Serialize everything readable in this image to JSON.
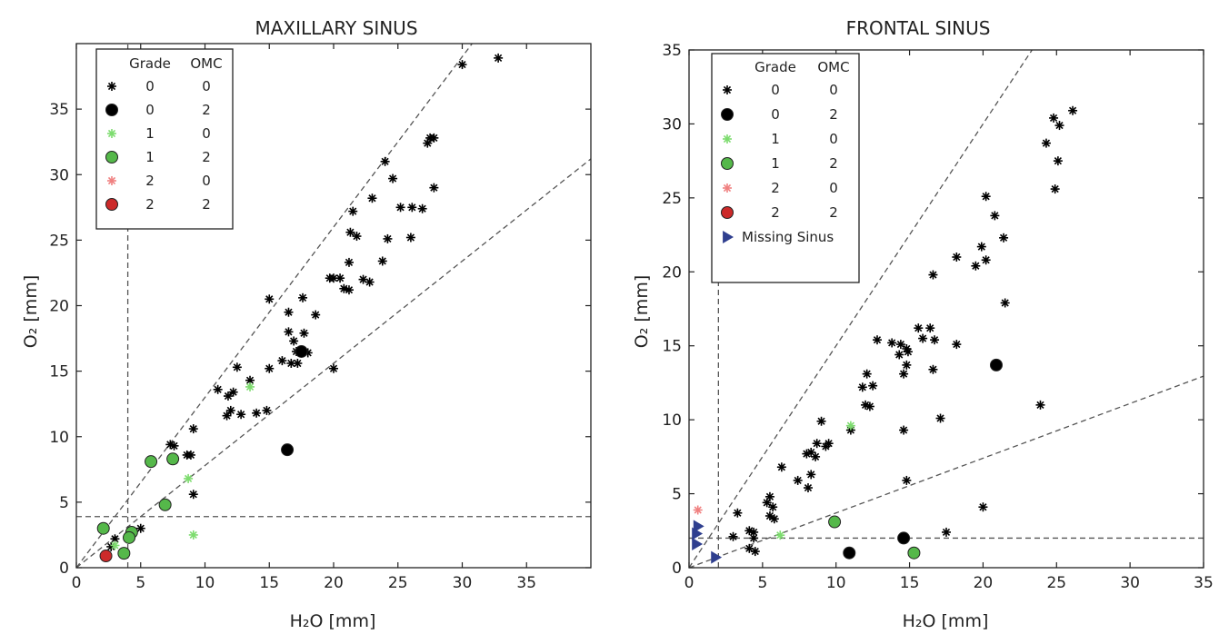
{
  "chart_data": [
    {
      "type": "scatter",
      "title": "MAXILLARY SINUS",
      "xlabel": "H₂O [mm]",
      "ylabel": "O₂ [mm]",
      "xlim": [
        0,
        40
      ],
      "ylim": [
        0,
        40
      ],
      "xticks": [
        0,
        5,
        10,
        15,
        20,
        25,
        30,
        35
      ],
      "yticks": [
        0,
        5,
        10,
        15,
        20,
        25,
        30,
        35
      ],
      "legend_header": [
        "Grade",
        "OMC"
      ],
      "legend_position": "top-left",
      "series": [
        {
          "grade": "0",
          "omc": "0",
          "marker": "star",
          "color": "#000000",
          "points": [
            [
              30,
              38.4
            ],
            [
              32.8,
              38.9
            ],
            [
              27.3,
              32.4
            ],
            [
              27.5,
              32.8
            ],
            [
              27.8,
              32.8
            ],
            [
              27.8,
              29
            ],
            [
              24,
              31
            ],
            [
              23,
              28.2
            ],
            [
              24.6,
              29.7
            ],
            [
              26.1,
              27.5
            ],
            [
              25.2,
              27.5
            ],
            [
              26.9,
              27.4
            ],
            [
              21.5,
              27.2
            ],
            [
              21.3,
              25.6
            ],
            [
              21.8,
              25.3
            ],
            [
              24.2,
              25.1
            ],
            [
              26,
              25.2
            ],
            [
              20.5,
              22.1
            ],
            [
              20,
              22.1
            ],
            [
              19.7,
              22.1
            ],
            [
              20.8,
              21.3
            ],
            [
              21.2,
              23.3
            ],
            [
              23.8,
              23.4
            ],
            [
              21.2,
              21.2
            ],
            [
              22.3,
              22
            ],
            [
              22.8,
              21.8
            ],
            [
              17.6,
              20.6
            ],
            [
              18.6,
              19.3
            ],
            [
              16.5,
              19.5
            ],
            [
              15,
              20.5
            ],
            [
              16.5,
              18
            ],
            [
              17.7,
              17.9
            ],
            [
              16.9,
              17.3
            ],
            [
              18,
              16.4
            ],
            [
              17.1,
              16.5
            ],
            [
              16,
              15.8
            ],
            [
              17.2,
              15.6
            ],
            [
              16.7,
              15.6
            ],
            [
              15,
              15.2
            ],
            [
              20,
              15.2
            ],
            [
              14.8,
              12
            ],
            [
              12,
              12
            ],
            [
              11,
              13.6
            ],
            [
              11.8,
              13.1
            ],
            [
              12.2,
              13.4
            ],
            [
              11.7,
              11.6
            ],
            [
              12.8,
              11.7
            ],
            [
              14,
              11.8
            ],
            [
              13.5,
              14.3
            ],
            [
              12.5,
              15.3
            ],
            [
              9.1,
              10.6
            ],
            [
              7.6,
              9.3
            ],
            [
              7.3,
              9.4
            ],
            [
              8.6,
              8.6
            ],
            [
              8.9,
              8.6
            ],
            [
              7.6,
              8.2
            ],
            [
              9.1,
              5.6
            ],
            [
              5,
              3
            ],
            [
              4.4,
              2.8
            ],
            [
              3,
              2.2
            ],
            [
              2.7,
              1.6
            ]
          ]
        },
        {
          "grade": "0",
          "omc": "2",
          "marker": "circle",
          "color": "#000000",
          "points": [
            [
              17.5,
              16.5
            ],
            [
              16.4,
              9
            ]
          ]
        },
        {
          "grade": "1",
          "omc": "0",
          "marker": "star",
          "color": "#7ddc6e",
          "points": [
            [
              13.5,
              13.8
            ],
            [
              8.7,
              6.8
            ],
            [
              9.1,
              2.5
            ],
            [
              4,
              2.3
            ],
            [
              3,
              1.7
            ]
          ]
        },
        {
          "grade": "1",
          "omc": "2",
          "marker": "circle",
          "color": "#55b84a",
          "points": [
            [
              5.8,
              8.1
            ],
            [
              7.5,
              8.3
            ],
            [
              6.9,
              4.8
            ],
            [
              2.1,
              3
            ],
            [
              4.3,
              2.7
            ],
            [
              4.1,
              2.3
            ],
            [
              3.7,
              1.1
            ]
          ]
        },
        {
          "grade": "2",
          "omc": "0",
          "marker": "star",
          "color": "#f08080",
          "points": []
        },
        {
          "grade": "2",
          "omc": "2",
          "marker": "circle",
          "color": "#cc2a2a",
          "points": [
            [
              2.3,
              0.9
            ]
          ]
        }
      ],
      "threshold_x": 4,
      "threshold_y": 3.9,
      "line_slopes": [
        1.3,
        0.78
      ]
    },
    {
      "type": "scatter",
      "title": "FRONTAL SINUS",
      "xlabel": "H₂O [mm]",
      "ylabel": "O₂ [mm]",
      "xlim": [
        0,
        35
      ],
      "ylim": [
        0,
        35
      ],
      "xticks": [
        0,
        5,
        10,
        15,
        20,
        25,
        30,
        35
      ],
      "yticks": [
        0,
        5,
        10,
        15,
        20,
        25,
        30,
        35
      ],
      "legend_header": [
        "Grade",
        "OMC"
      ],
      "legend_position": "top-left",
      "series": [
        {
          "grade": "0",
          "omc": "0",
          "marker": "star",
          "color": "#000000",
          "points": [
            [
              26.1,
              30.9
            ],
            [
              24.8,
              30.4
            ],
            [
              25.2,
              29.9
            ],
            [
              24.3,
              28.7
            ],
            [
              25.1,
              27.5
            ],
            [
              24.9,
              25.6
            ],
            [
              20.2,
              25.1
            ],
            [
              20.8,
              23.8
            ],
            [
              21.4,
              22.3
            ],
            [
              16.6,
              19.8
            ],
            [
              18.2,
              21
            ],
            [
              19.5,
              20.4
            ],
            [
              19.9,
              21.7
            ],
            [
              20.2,
              20.8
            ],
            [
              21.5,
              17.9
            ],
            [
              15.6,
              16.2
            ],
            [
              16.4,
              16.2
            ],
            [
              15.9,
              15.5
            ],
            [
              16.7,
              15.4
            ],
            [
              18.2,
              15.1
            ],
            [
              12.8,
              15.4
            ],
            [
              13.8,
              15.2
            ],
            [
              14.4,
              15.1
            ],
            [
              14.8,
              14.8
            ],
            [
              14.3,
              14.4
            ],
            [
              14.9,
              14.6
            ],
            [
              14.8,
              13.7
            ],
            [
              14.6,
              13.1
            ],
            [
              16.6,
              13.4
            ],
            [
              12.1,
              13.1
            ],
            [
              11.8,
              12.2
            ],
            [
              12.5,
              12.3
            ],
            [
              12,
              11
            ],
            [
              12.3,
              10.9
            ],
            [
              17.1,
              10.1
            ],
            [
              23.9,
              11
            ],
            [
              11,
              9.3
            ],
            [
              9,
              9.9
            ],
            [
              8.7,
              8.4
            ],
            [
              9.5,
              8.4
            ],
            [
              9.3,
              8.2
            ],
            [
              8.3,
              7.8
            ],
            [
              8.6,
              7.5
            ],
            [
              8,
              7.7
            ],
            [
              6.3,
              6.8
            ],
            [
              8.3,
              6.3
            ],
            [
              8.1,
              5.4
            ],
            [
              7.4,
              5.9
            ],
            [
              14.6,
              9.3
            ],
            [
              14.8,
              5.9
            ],
            [
              20,
              4.1
            ],
            [
              5.5,
              4.8
            ],
            [
              5.7,
              4.1
            ],
            [
              5.5,
              3.5
            ],
            [
              5.8,
              3.3
            ],
            [
              5.3,
              4.4
            ],
            [
              4.1,
              2.5
            ],
            [
              4.4,
              2.4
            ],
            [
              3.3,
              3.7
            ],
            [
              4.4,
              2
            ],
            [
              4.1,
              1.3
            ],
            [
              4.5,
              1.1
            ],
            [
              3,
              2.1
            ],
            [
              17.5,
              2.4
            ]
          ]
        },
        {
          "grade": "0",
          "omc": "2",
          "marker": "circle",
          "color": "#000000",
          "points": [
            [
              20.9,
              13.7
            ],
            [
              14.6,
              2
            ],
            [
              10.9,
              1
            ]
          ]
        },
        {
          "grade": "1",
          "omc": "0",
          "marker": "star",
          "color": "#7ddc6e",
          "points": [
            [
              11,
              9.6
            ],
            [
              6.2,
              2.2
            ]
          ]
        },
        {
          "grade": "1",
          "omc": "2",
          "marker": "circle",
          "color": "#55b84a",
          "points": [
            [
              9.9,
              3.1
            ],
            [
              15.3,
              1
            ]
          ]
        },
        {
          "grade": "2",
          "omc": "0",
          "marker": "star",
          "color": "#f08080",
          "points": [
            [
              0.6,
              3.9
            ]
          ]
        },
        {
          "grade": "2",
          "omc": "2",
          "marker": "circle",
          "color": "#cc2a2a",
          "points": []
        },
        {
          "name": "Missing Sinus",
          "marker": "triangle",
          "color": "#2f3f8f",
          "points": [
            [
              0.6,
              2.8
            ],
            [
              0.5,
              2.3
            ],
            [
              0.5,
              1.6
            ],
            [
              1.8,
              0.7
            ]
          ]
        }
      ],
      "threshold_x": 2,
      "threshold_y": 2,
      "line_slopes": [
        1.5,
        0.37
      ]
    }
  ]
}
